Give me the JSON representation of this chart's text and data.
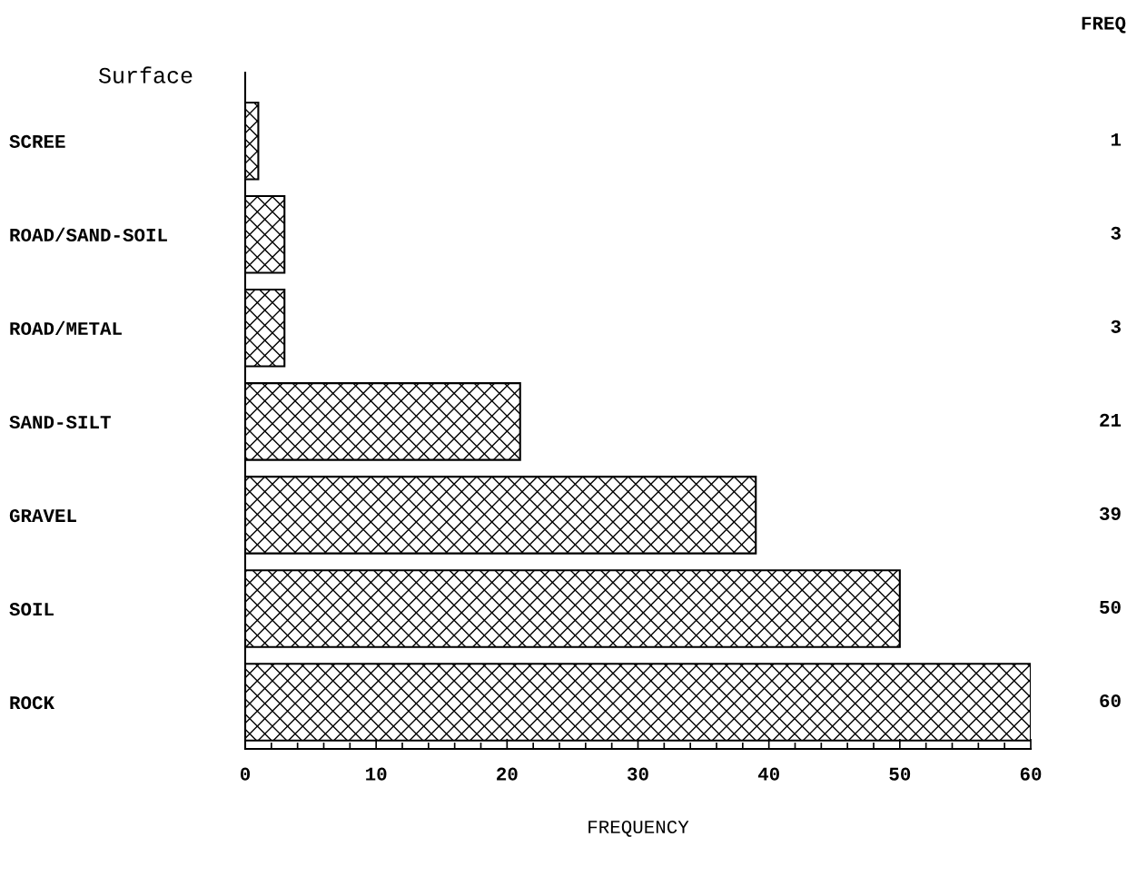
{
  "chart_data": {
    "type": "bar",
    "orientation": "horizontal",
    "categories": [
      "SCREE",
      "ROAD/SAND-SOIL",
      "ROAD/METAL",
      "SAND-SILT",
      "GRAVEL",
      "SOIL",
      "ROCK"
    ],
    "values": [
      1,
      3,
      3,
      21,
      39,
      50,
      60
    ],
    "color": "#000000",
    "ylabel": "Surface",
    "xlabel": "FREQUENCY",
    "annotations": [
      "FREQ"
    ],
    "data_labels": true,
    "xlim": [
      0,
      60
    ],
    "xticks": [
      0,
      {
        "value": 2,
        "label": null
      },
      {
        "value": 4,
        "label": null
      },
      {
        "value": 6,
        "label": null
      },
      {
        "value": 8,
        "label": null
      },
      10,
      {
        "value": 12,
        "label": null
      },
      {
        "value": 14,
        "label": null
      },
      {
        "value": 16,
        "label": null
      },
      {
        "value": 18,
        "label": null
      },
      20,
      {
        "value": 22,
        "label": null
      },
      {
        "value": 24,
        "label": null
      },
      {
        "value": 26,
        "label": null
      },
      {
        "value": 28,
        "label": null
      },
      30,
      {
        "value": 32,
        "label": null
      },
      {
        "value": 34,
        "label": null
      },
      {
        "value": 36,
        "label": null
      },
      {
        "value": 38,
        "label": null
      },
      40,
      {
        "value": 42,
        "label": null
      },
      {
        "value": 44,
        "label": null
      },
      {
        "value": 46,
        "label": null
      },
      {
        "value": 48,
        "label": null
      },
      50,
      {
        "value": 52,
        "label": null
      },
      {
        "value": 54,
        "label": null
      },
      {
        "value": 56,
        "label": null
      },
      {
        "value": 58,
        "label": null
      },
      60
    ],
    "grid": false,
    "legend": false
  }
}
